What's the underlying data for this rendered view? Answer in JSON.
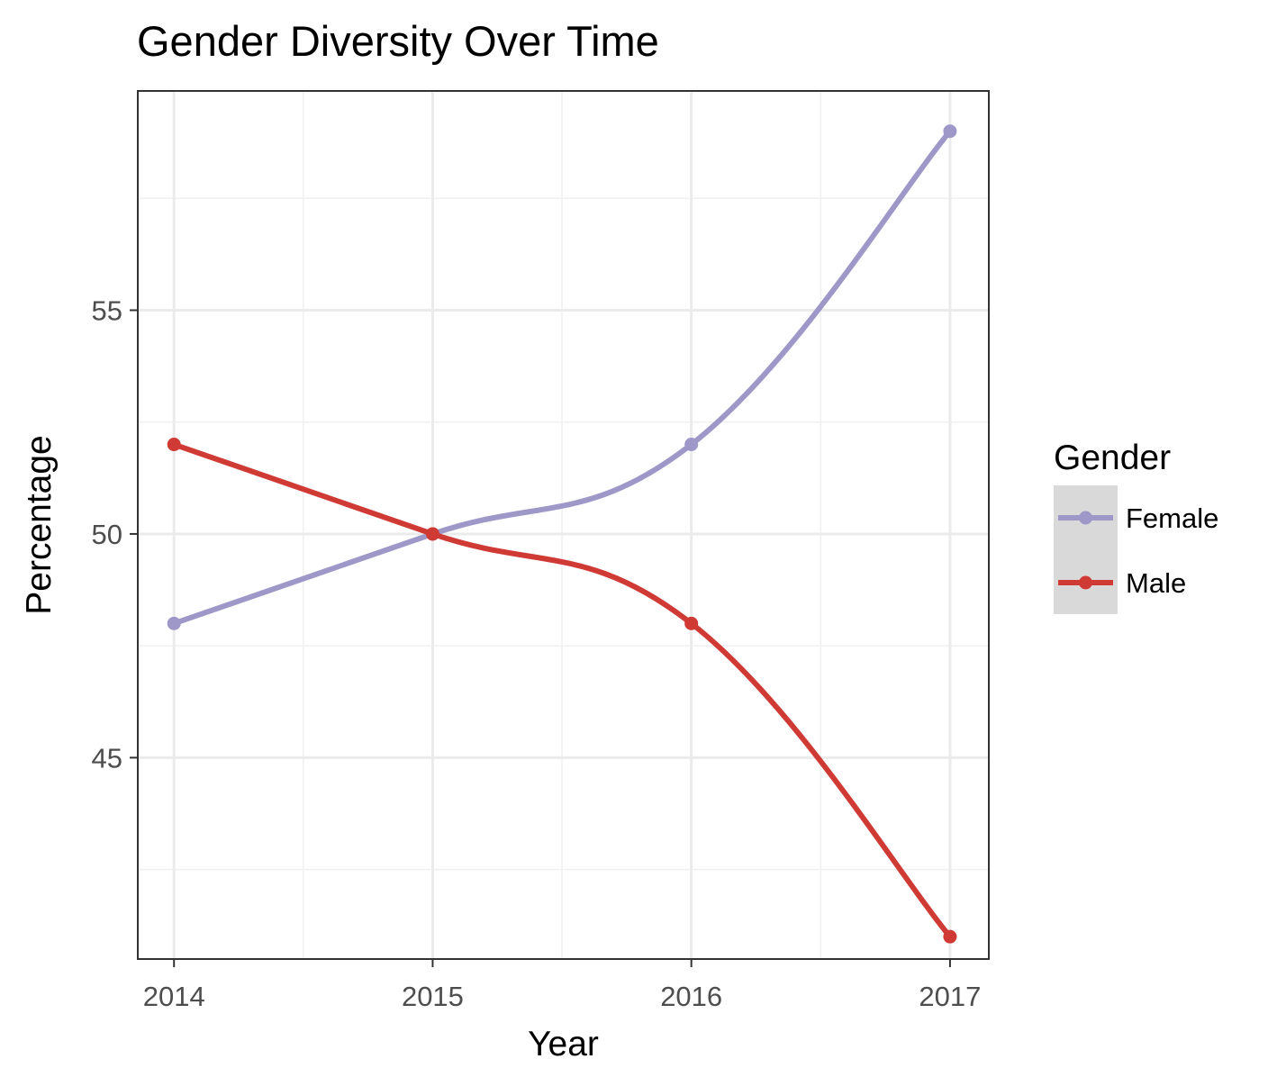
{
  "chart_data": {
    "type": "line",
    "title": "Gender Diversity Over Time",
    "xlabel": "Year",
    "ylabel": "Percentage",
    "x": [
      2014,
      2015,
      2016,
      2017
    ],
    "xlim": [
      2013.86,
      2017.15
    ],
    "ylim": [
      40.5,
      59.9
    ],
    "x_ticks": [
      2014,
      2015,
      2016,
      2017
    ],
    "y_ticks": [
      45,
      50,
      55
    ],
    "y_minor_ticks": [
      42.5,
      47.5,
      52.5,
      57.5
    ],
    "grid": true,
    "smooth": true,
    "legend": {
      "title": "Gender",
      "position": "right"
    },
    "series": [
      {
        "name": "Female",
        "color": "#9e98c8",
        "values": [
          48,
          50,
          52,
          59
        ]
      },
      {
        "name": "Male",
        "color": "#d03a35",
        "values": [
          52,
          50,
          48,
          41
        ]
      }
    ]
  }
}
